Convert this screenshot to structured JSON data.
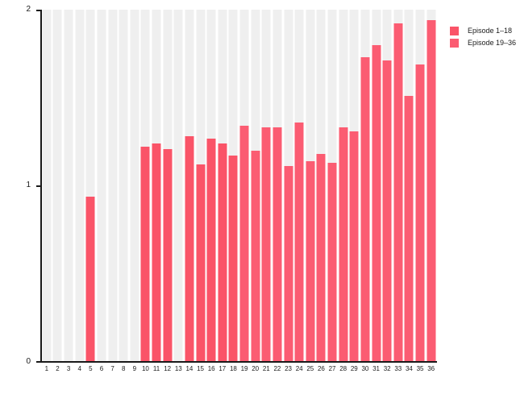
{
  "chart_data": {
    "type": "bar",
    "title": "",
    "xlabel": "",
    "ylabel": "",
    "categories": [
      "1",
      "2",
      "3",
      "4",
      "5",
      "6",
      "7",
      "8",
      "9",
      "10",
      "11",
      "12",
      "13",
      "14",
      "15",
      "16",
      "17",
      "18",
      "19",
      "20",
      "21",
      "22",
      "23",
      "24",
      "25",
      "26",
      "27",
      "28",
      "29",
      "30",
      "31",
      "32",
      "33",
      "34",
      "35",
      "36"
    ],
    "values": [
      0,
      0,
      0,
      0,
      0.94,
      0,
      0,
      0,
      0,
      1.22,
      1.24,
      1.21,
      0,
      1.28,
      1.12,
      1.27,
      1.24,
      1.17,
      1.34,
      1.2,
      1.33,
      1.33,
      1.11,
      1.36,
      1.14,
      1.18,
      1.13,
      1.33,
      1.31,
      1.73,
      1.8,
      1.71,
      1.92,
      1.51,
      1.69,
      1.94
    ],
    "series": [
      {
        "name": "Episode 1–18",
        "color": "#fa5468",
        "category_range": [
          1,
          18
        ]
      },
      {
        "name": "Episode 19–36",
        "color": "#fb5c72",
        "category_range": [
          19,
          36
        ]
      }
    ],
    "ylim": [
      0,
      2
    ],
    "yticks": [
      "0",
      "1",
      "2"
    ],
    "grid": false,
    "plot_background_stripe_color": "#efefef",
    "axis_color": "#1a1a1a",
    "legend_position": "top-right"
  }
}
